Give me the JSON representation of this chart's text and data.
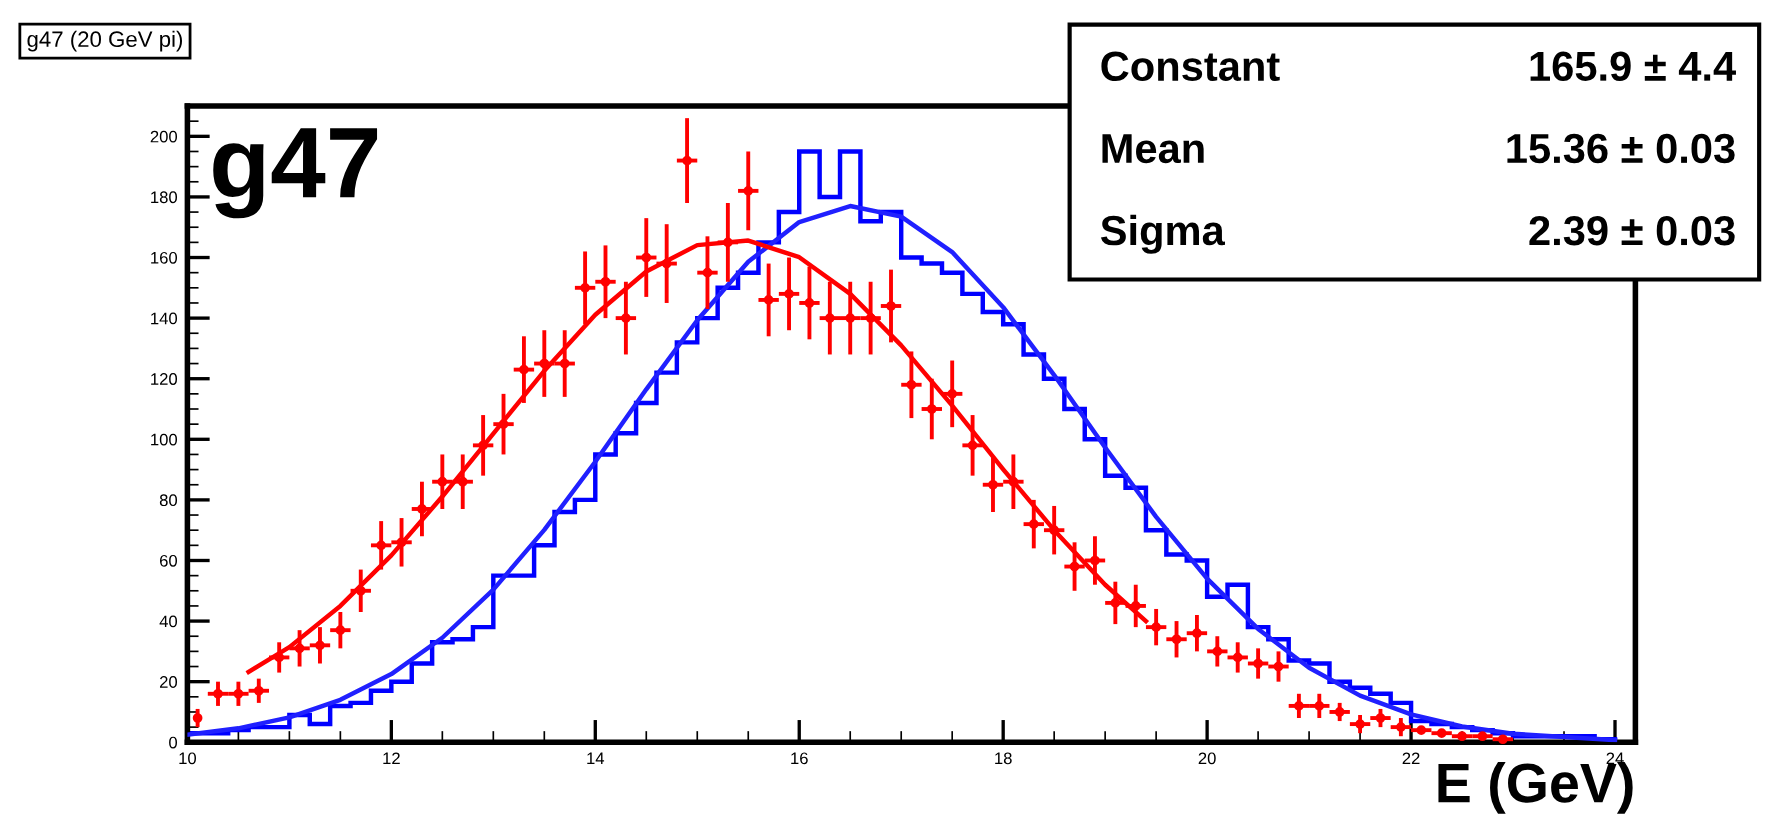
{
  "chart_data": {
    "type": "histogram",
    "title": "g47 (20 GeV pi)",
    "xlabel": "E (GeV)",
    "annotations": [
      "g47",
      "Constant",
      "165.9 ± 4.4",
      "Mean",
      "15.36 ± 0.03",
      "Sigma",
      "2.39 ± 0.03"
    ],
    "xlim": [
      10,
      24.2
    ],
    "ylim": [
      0,
      210
    ],
    "xticks": [
      10,
      12,
      14,
      16,
      18,
      20,
      22,
      24
    ],
    "yticks": [
      0,
      20,
      40,
      60,
      80,
      100,
      120,
      140,
      160,
      180,
      200
    ],
    "grid": false,
    "legend": false,
    "color": "#0000ff",
    "bins": [
      10.0,
      10.2,
      10.4,
      10.6,
      10.8,
      11.0,
      11.2,
      11.4,
      11.6,
      11.8,
      12.0,
      12.2,
      12.4,
      12.6,
      12.8,
      13.0,
      13.2,
      13.4,
      13.6,
      13.8,
      14.0,
      14.2,
      14.4,
      14.6,
      14.8,
      15.0,
      15.2,
      15.4,
      15.6,
      15.8,
      16.0,
      16.2,
      16.4,
      16.6,
      16.8,
      17.0,
      17.2,
      17.4,
      17.6,
      17.8,
      18.0,
      18.2,
      18.4,
      18.6,
      18.8,
      19.0,
      19.2,
      19.4,
      19.6,
      19.8,
      20.0,
      20.2,
      20.4,
      20.6,
      20.8,
      21.0,
      21.2,
      21.4,
      21.6,
      21.8,
      22.0,
      22.2,
      22.4,
      22.6,
      22.8,
      23.0,
      23.2,
      23.4,
      23.6,
      23.8,
      24.0
    ],
    "values": [
      3,
      3,
      4,
      5,
      5,
      9,
      6,
      12,
      13,
      17,
      20,
      26,
      33,
      34,
      38,
      55,
      55,
      65,
      76,
      80,
      95,
      102,
      112,
      122,
      132,
      140,
      150,
      155,
      165,
      175,
      195,
      180,
      195,
      172,
      175,
      160,
      158,
      155,
      148,
      142,
      138,
      128,
      120,
      110,
      100,
      88,
      84,
      70,
      62,
      60,
      48,
      52,
      38,
      34,
      27,
      26,
      20,
      18,
      16,
      13,
      7,
      6,
      5,
      4,
      3,
      2,
      2,
      2,
      2,
      1
    ],
    "series": [
      {
        "type": "line",
        "color": "#2020ff",
        "marker": "none",
        "x": [
          10,
          10.5,
          11,
          11.5,
          12,
          12.5,
          13,
          13.5,
          14,
          14.5,
          15,
          15.5,
          16,
          16.5,
          17,
          17.5,
          18,
          18.5,
          19,
          19.5,
          20,
          20.5,
          21,
          21.5,
          22,
          22.5,
          23,
          24
        ],
        "values": [
          2.5,
          4.6,
          8.2,
          14,
          22.5,
          34.5,
          50.4,
          70.1,
          92.6,
          116.5,
          139.3,
          158.6,
          171.7,
          177,
          173.5,
          161.8,
          143.6,
          121.2,
          97.3,
          74.4,
          54,
          37.4,
          24.6,
          15.4,
          9.2,
          5.2,
          2.8,
          0.7
        ]
      },
      {
        "type": "scatter",
        "color": "#ff0000",
        "marker": "circle",
        "x": [
          10.1,
          10.3,
          10.5,
          10.7,
          10.9,
          11.1,
          11.3,
          11.5,
          11.7,
          11.9,
          12.1,
          12.3,
          12.5,
          12.7,
          12.9,
          13.1,
          13.3,
          13.5,
          13.7,
          13.9,
          14.1,
          14.3,
          14.5,
          14.7,
          14.9,
          15.1,
          15.3,
          15.5,
          15.7,
          15.9,
          16.1,
          16.3,
          16.5,
          16.7,
          16.9,
          17.1,
          17.3,
          17.5,
          17.7,
          17.9,
          18.1,
          18.3,
          18.5,
          18.7,
          18.9,
          19.1,
          19.3,
          19.5,
          19.7,
          19.9,
          20.1,
          20.3,
          20.5,
          20.7,
          20.9,
          21.1,
          21.3,
          21.5,
          21.7,
          21.9,
          22.1,
          22.3,
          22.5,
          22.7,
          22.9
        ],
        "values": [
          8,
          16,
          16,
          17,
          28,
          31,
          32,
          37,
          50,
          65,
          66,
          77,
          86,
          86,
          98,
          105,
          123,
          125,
          125,
          150,
          152,
          140,
          160,
          158,
          192,
          155,
          165,
          182,
          146,
          148,
          145,
          140,
          140,
          140,
          144,
          118,
          110,
          115,
          98,
          85,
          86,
          72,
          70,
          58,
          60,
          46,
          45,
          38,
          34,
          36,
          30,
          28,
          26,
          25,
          12,
          12,
          10,
          6,
          8,
          5,
          4,
          3,
          2,
          2,
          1
        ],
        "errors": [
          3,
          4,
          4,
          4,
          5,
          6,
          6,
          6,
          7,
          8,
          8,
          9,
          9,
          9,
          10,
          10,
          11,
          11,
          11,
          12,
          12,
          12,
          13,
          13,
          14,
          12,
          13,
          13,
          12,
          12,
          12,
          12,
          12,
          12,
          12,
          11,
          10,
          11,
          10,
          9,
          9,
          8,
          8,
          8,
          8,
          7,
          7,
          6,
          6,
          6,
          5,
          5,
          5,
          5,
          4,
          4,
          3,
          3,
          3,
          3,
          null,
          null,
          null,
          null,
          null
        ],
        "xerrors": [
          null,
          0.1,
          0.1,
          0.1,
          0.1,
          0.1,
          0.1,
          0.1,
          0.1,
          0.1,
          0.1,
          0.1,
          0.1,
          0.1,
          0.1,
          0.1,
          0.1,
          0.1,
          0.1,
          0.1,
          0.1,
          0.1,
          0.1,
          0.1,
          0.1,
          0.1,
          0.1,
          0.1,
          0.1,
          0.1,
          0.1,
          0.1,
          0.1,
          0.1,
          0.1,
          0.1,
          0.1,
          0.1,
          0.1,
          0.1,
          0.1,
          0.1,
          0.1,
          0.1,
          0.1,
          0.1,
          0.1,
          0.1,
          0.1,
          0.1,
          0.1,
          0.1,
          0.1,
          0.1,
          0.1,
          0.1,
          0.1,
          0.1,
          0.1,
          0.1,
          0.1,
          0.1,
          0.1,
          0.1,
          0.1
        ]
      },
      {
        "type": "line",
        "color": "#ff0000",
        "marker": "none",
        "x": [
          10.6,
          11,
          11.5,
          12,
          12.5,
          13,
          13.5,
          14,
          14.5,
          15,
          15.5,
          16,
          16.5,
          17,
          17.5,
          18,
          18.5,
          19,
          19.4
        ],
        "values": [
          23.2,
          31.4,
          45,
          61.7,
          81.1,
          101.9,
          122.6,
          141.1,
          155.4,
          164.1,
          165.6,
          160.1,
          148,
          131,
          111.1,
          90.1,
          70,
          52,
          40
        ]
      }
    ]
  }
}
